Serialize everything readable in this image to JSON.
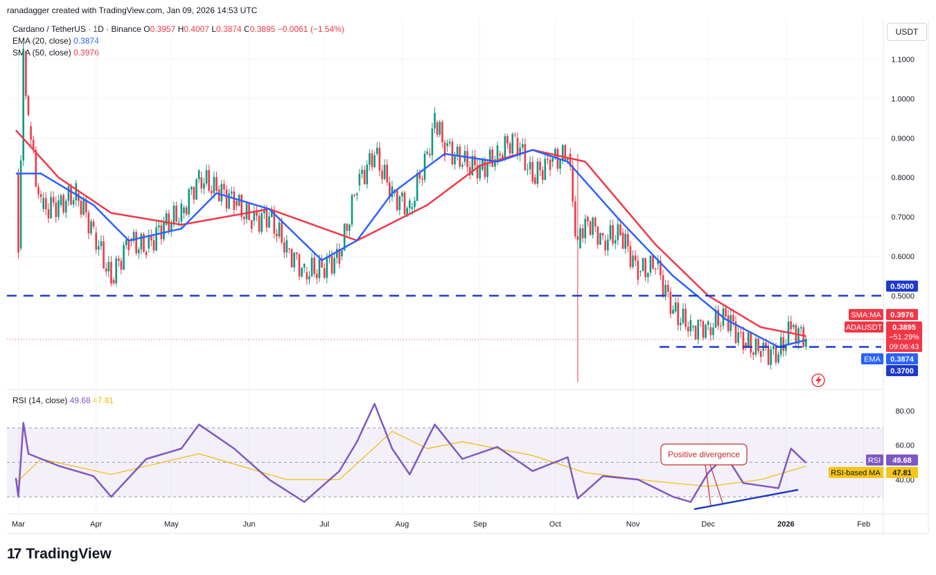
{
  "watermark": "ranadagger created with TradingView.com, Jan 09, 2026 14:53 UTC",
  "legend": {
    "symbol": "Cardano / TetherUS · 1D · Binance",
    "o_label": "O",
    "o": "0.3957",
    "h_label": "H",
    "h": "0.4007",
    "l_label": "L",
    "l": "0.3874",
    "c_label": "C",
    "c": "0.3895",
    "change": "−0.0061 (−1.54%)",
    "ema_label": "EMA (20, close)",
    "ema_value": "0.3874",
    "sma_label": "SMA (50, close)",
    "sma_value": "0.3976"
  },
  "currency": "USDT",
  "rsi_legend": {
    "label": "RSI (14, close)",
    "rsi": "49.68",
    "ma": "47.81"
  },
  "right_tags": {
    "level_500": "0.5000",
    "sma_label": "SMA:MA",
    "sma": "0.3976",
    "symbol_label": "ADAUSDT",
    "price": "0.3895",
    "pct": "−51.29%",
    "countdown": "09:06:43",
    "ema_label": "EMA",
    "ema": "0.3874",
    "level_370": "0.3700",
    "rsi_label": "RSI",
    "rsi": "49.68",
    "rsi_ma_label": "RSI-based MA",
    "rsi_ma": "47.81"
  },
  "annotation": "Positive divergence",
  "brand": "TradingView",
  "colors": {
    "up": "#089981",
    "down": "#f23645",
    "ema": "#2962ff",
    "sma": "#f23645",
    "rsi": "#7e57c2",
    "rsi_ma": "#f5b800",
    "level": "#1e3acb"
  },
  "chart_data": [
    {
      "type": "candlestick",
      "title": "Cardano / TetherUS · 1D · Binance",
      "x_ticks": [
        "Mar",
        "Apr",
        "May",
        "Jun",
        "Jul",
        "Aug",
        "Sep",
        "Oct",
        "Nov",
        "Dec",
        "2026",
        "Feb"
      ],
      "y_ticks": [
        1.1,
        1.0,
        0.9,
        0.8,
        0.7,
        0.6,
        0.5
      ],
      "ylim": [
        0.28,
        1.18
      ],
      "horizontal_levels": [
        0.5,
        0.37
      ],
      "series": [
        {
          "name": "Price",
          "points": [
            [
              "2025-02-28",
              0.81
            ],
            [
              "2025-03-01",
              0.62
            ],
            [
              "2025-03-03",
              1.12
            ],
            [
              "2025-03-05",
              0.93
            ],
            [
              "2025-03-10",
              0.72
            ],
            [
              "2025-03-17",
              0.73
            ],
            [
              "2025-03-24",
              0.76
            ],
            [
              "2025-03-31",
              0.66
            ],
            [
              "2025-04-07",
              0.54
            ],
            [
              "2025-04-14",
              0.64
            ],
            [
              "2025-04-21",
              0.62
            ],
            [
              "2025-04-28",
              0.68
            ],
            [
              "2025-05-05",
              0.71
            ],
            [
              "2025-05-12",
              0.8
            ],
            [
              "2025-05-19",
              0.77
            ],
            [
              "2025-05-26",
              0.74
            ],
            [
              "2025-06-02",
              0.69
            ],
            [
              "2025-06-09",
              0.7
            ],
            [
              "2025-06-16",
              0.62
            ],
            [
              "2025-06-23",
              0.56
            ],
            [
              "2025-06-30",
              0.57
            ],
            [
              "2025-07-07",
              0.6
            ],
            [
              "2025-07-14",
              0.78
            ],
            [
              "2025-07-21",
              0.86
            ],
            [
              "2025-07-28",
              0.76
            ],
            [
              "2025-08-04",
              0.72
            ],
            [
              "2025-08-11",
              0.86
            ],
            [
              "2025-08-14",
              0.94
            ],
            [
              "2025-08-18",
              0.88
            ],
            [
              "2025-08-25",
              0.84
            ],
            [
              "2025-09-01",
              0.82
            ],
            [
              "2025-09-08",
              0.86
            ],
            [
              "2025-09-15",
              0.9
            ],
            [
              "2025-09-22",
              0.8
            ],
            [
              "2025-09-29",
              0.84
            ],
            [
              "2025-10-06",
              0.86
            ],
            [
              "2025-10-10",
              0.62
            ],
            [
              "2025-10-13",
              0.7
            ],
            [
              "2025-10-20",
              0.64
            ],
            [
              "2025-10-27",
              0.66
            ],
            [
              "2025-11-03",
              0.56
            ],
            [
              "2025-11-10",
              0.58
            ],
            [
              "2025-11-17",
              0.46
            ],
            [
              "2025-11-24",
              0.42
            ],
            [
              "2025-12-01",
              0.42
            ],
            [
              "2025-12-08",
              0.45
            ],
            [
              "2025-12-15",
              0.38
            ],
            [
              "2025-12-22",
              0.36
            ],
            [
              "2025-12-29",
              0.35
            ],
            [
              "2026-01-03",
              0.42
            ],
            [
              "2026-01-09",
              0.3895
            ]
          ]
        },
        {
          "name": "EMA (20, close)",
          "points": [
            [
              "2025-02-28",
              0.81
            ],
            [
              "2025-03-10",
              0.81
            ],
            [
              "2025-03-31",
              0.73
            ],
            [
              "2025-04-14",
              0.64
            ],
            [
              "2025-05-05",
              0.67
            ],
            [
              "2025-05-19",
              0.76
            ],
            [
              "2025-06-09",
              0.72
            ],
            [
              "2025-06-30",
              0.59
            ],
            [
              "2025-07-14",
              0.64
            ],
            [
              "2025-07-28",
              0.76
            ],
            [
              "2025-08-18",
              0.86
            ],
            [
              "2025-09-08",
              0.84
            ],
            [
              "2025-09-22",
              0.87
            ],
            [
              "2025-10-06",
              0.84
            ],
            [
              "2025-10-27",
              0.69
            ],
            [
              "2025-11-17",
              0.55
            ],
            [
              "2025-12-08",
              0.44
            ],
            [
              "2025-12-29",
              0.37
            ],
            [
              "2026-01-09",
              0.3874
            ]
          ]
        },
        {
          "name": "SMA (50, close)",
          "points": [
            [
              "2025-02-28",
              0.92
            ],
            [
              "2025-03-17",
              0.8
            ],
            [
              "2025-04-07",
              0.71
            ],
            [
              "2025-05-05",
              0.68
            ],
            [
              "2025-06-09",
              0.72
            ],
            [
              "2025-07-14",
              0.64
            ],
            [
              "2025-08-11",
              0.73
            ],
            [
              "2025-09-01",
              0.83
            ],
            [
              "2025-09-22",
              0.87
            ],
            [
              "2025-10-13",
              0.84
            ],
            [
              "2025-11-10",
              0.63
            ],
            [
              "2025-12-01",
              0.5
            ],
            [
              "2025-12-22",
              0.42
            ],
            [
              "2026-01-09",
              0.3976
            ]
          ]
        }
      ]
    },
    {
      "type": "line",
      "title": "RSI (14, close)",
      "y_ticks": [
        80,
        60,
        40
      ],
      "ylim": [
        20,
        90
      ],
      "bands": [
        30,
        50,
        70
      ],
      "series": [
        {
          "name": "RSI",
          "points": [
            [
              "2025-02-28",
              41
            ],
            [
              "2025-03-01",
              30
            ],
            [
              "2025-03-03",
              73
            ],
            [
              "2025-03-05",
              55
            ],
            [
              "2025-03-17",
              48
            ],
            [
              "2025-03-31",
              42
            ],
            [
              "2025-04-07",
              30
            ],
            [
              "2025-04-21",
              52
            ],
            [
              "2025-05-05",
              58
            ],
            [
              "2025-05-12",
              72
            ],
            [
              "2025-05-26",
              58
            ],
            [
              "2025-06-09",
              40
            ],
            [
              "2025-06-23",
              27
            ],
            [
              "2025-07-07",
              45
            ],
            [
              "2025-07-14",
              62
            ],
            [
              "2025-07-21",
              84
            ],
            [
              "2025-07-28",
              58
            ],
            [
              "2025-08-04",
              43
            ],
            [
              "2025-08-14",
              72
            ],
            [
              "2025-08-25",
              52
            ],
            [
              "2025-09-08",
              59
            ],
            [
              "2025-09-22",
              45
            ],
            [
              "2025-10-06",
              53
            ],
            [
              "2025-10-10",
              29
            ],
            [
              "2025-10-20",
              42
            ],
            [
              "2025-11-03",
              40
            ],
            [
              "2025-11-17",
              30
            ],
            [
              "2025-11-24",
              27
            ],
            [
              "2025-12-01",
              44
            ],
            [
              "2025-12-08",
              54
            ],
            [
              "2025-12-15",
              38
            ],
            [
              "2025-12-29",
              35
            ],
            [
              "2026-01-03",
              58
            ],
            [
              "2026-01-09",
              49.68
            ]
          ]
        },
        {
          "name": "RSI-based MA",
          "points": [
            [
              "2025-02-28",
              38
            ],
            [
              "2025-03-10",
              52
            ],
            [
              "2025-04-07",
              43
            ],
            [
              "2025-05-12",
              55
            ],
            [
              "2025-06-16",
              40
            ],
            [
              "2025-07-07",
              40
            ],
            [
              "2025-07-28",
              68
            ],
            [
              "2025-08-11",
              58
            ],
            [
              "2025-08-25",
              62
            ],
            [
              "2025-09-22",
              54
            ],
            [
              "2025-10-13",
              44
            ],
            [
              "2025-11-10",
              39
            ],
            [
              "2025-12-01",
              36
            ],
            [
              "2025-12-22",
              40
            ],
            [
              "2026-01-09",
              47.81
            ]
          ]
        }
      ]
    }
  ]
}
